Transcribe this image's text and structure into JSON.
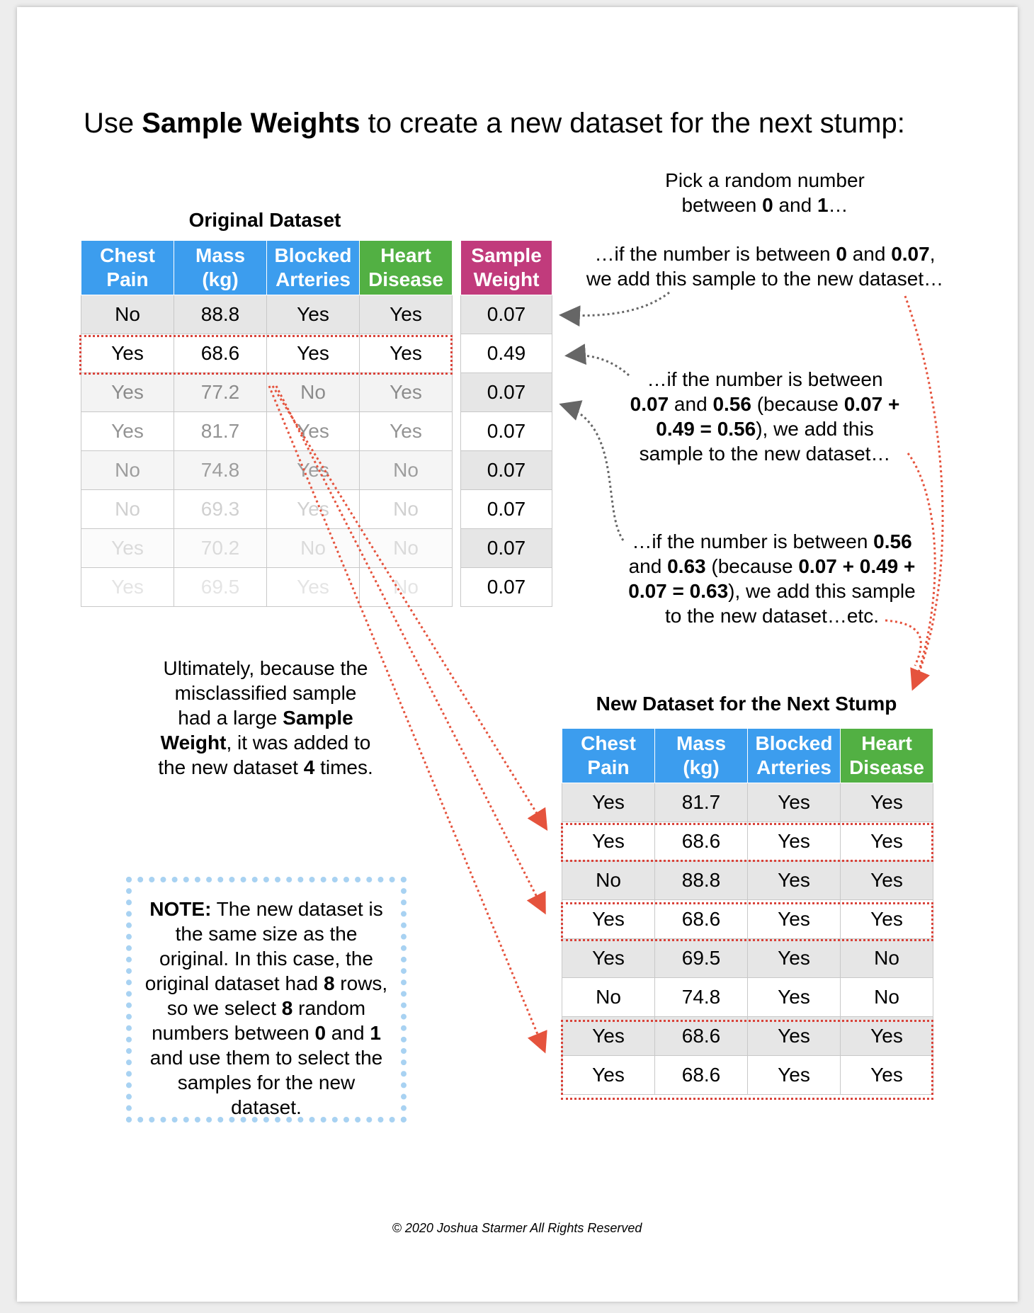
{
  "title": {
    "pre": "Use ",
    "bold": "Sample Weights",
    "post": " to create a new dataset for the next stump:"
  },
  "original": {
    "caption": "Original Dataset",
    "headers": [
      [
        "Chest",
        "Pain"
      ],
      [
        "Mass",
        "(kg)"
      ],
      [
        "Blocked",
        "Arteries"
      ],
      [
        "Heart",
        "Disease"
      ]
    ],
    "rows": [
      [
        "No",
        "88.8",
        "Yes",
        "Yes"
      ],
      [
        "Yes",
        "68.6",
        "Yes",
        "Yes"
      ],
      [
        "Yes",
        "77.2",
        "No",
        "Yes"
      ],
      [
        "Yes",
        "81.7",
        "Yes",
        "Yes"
      ],
      [
        "No",
        "74.8",
        "Yes",
        "No"
      ],
      [
        "No",
        "69.3",
        "Yes",
        "No"
      ],
      [
        "Yes",
        "70.2",
        "No",
        "No"
      ],
      [
        "Yes",
        "69.5",
        "Yes",
        "No"
      ]
    ],
    "row_opacity": [
      1,
      1,
      0.45,
      0.42,
      0.38,
      0.18,
      0.14,
      0.1
    ]
  },
  "weights": {
    "header": [
      "Sample",
      "Weight"
    ],
    "values": [
      "0.07",
      "0.49",
      "0.07",
      "0.07",
      "0.07",
      "0.07",
      "0.07",
      "0.07"
    ]
  },
  "pick": {
    "l1": "Pick a random number",
    "l2a": "between ",
    "l2b": "0",
    "l2c": " and ",
    "l2d": "1",
    "l2e": "…"
  },
  "ann1": {
    "a": "…if the number is between ",
    "b": "0",
    "c": " and ",
    "d": "0.07",
    "e": ",",
    "l2": "we add this sample to the new dataset…"
  },
  "ann2": {
    "l1": "…if the number is between",
    "l2a": "0.07",
    "l2b": " and ",
    "l2c": "0.56",
    "l2d": " (because ",
    "l2e": "0.07 +",
    "l3a": "0.49 = 0.56",
    "l3b": "), we add this",
    "l4": "sample to the new dataset…"
  },
  "ann3": {
    "l1a": "…if the number is between ",
    "l1b": "0.56",
    "l2a": "and ",
    "l2b": "0.63",
    "l2c": " (because ",
    "l2d": "0.07 + 0.49 +",
    "l3a": "0.07 = 0.63",
    "l3b": "), we add this sample",
    "l4": "to the new dataset…etc."
  },
  "ultimately": {
    "l1": "Ultimately, because the",
    "l2": "misclassified sample",
    "l3a": "had a large ",
    "l3b": "Sample",
    "l4a": "Weight",
    "l4b": ", it was added to",
    "l5a": "the new dataset ",
    "l5b": "4",
    "l5c": " times."
  },
  "new_dataset": {
    "caption": "New Dataset for the Next Stump",
    "headers": [
      [
        "Chest",
        "Pain"
      ],
      [
        "Mass",
        "(kg)"
      ],
      [
        "Blocked",
        "Arteries"
      ],
      [
        "Heart",
        "Disease"
      ]
    ],
    "rows": [
      [
        "Yes",
        "81.7",
        "Yes",
        "Yes"
      ],
      [
        "Yes",
        "68.6",
        "Yes",
        "Yes"
      ],
      [
        "No",
        "88.8",
        "Yes",
        "Yes"
      ],
      [
        "Yes",
        "68.6",
        "Yes",
        "Yes"
      ],
      [
        "Yes",
        "69.5",
        "Yes",
        "No"
      ],
      [
        "No",
        "74.8",
        "Yes",
        "No"
      ],
      [
        "Yes",
        "68.6",
        "Yes",
        "Yes"
      ],
      [
        "Yes",
        "68.6",
        "Yes",
        "Yes"
      ]
    ]
  },
  "note": {
    "a": "NOTE:",
    "b": " The new dataset is the same size as the original. In this case, the original dataset had ",
    "c": "8",
    "d": " rows, so we select ",
    "e": "8",
    "f": " random numbers between ",
    "g": "0",
    "h": " and ",
    "i": "1",
    "j": " and use them to select the samples for the new dataset."
  },
  "footer": "© 2020 Joshua Starmer All Rights Reserved",
  "colors": {
    "blue": "#3c9dee",
    "green": "#52b043",
    "magenta": "#c13b7c",
    "arrow_red": "#e5533d",
    "arrow_gray": "#666666",
    "note_border": "#a8d2f2"
  }
}
